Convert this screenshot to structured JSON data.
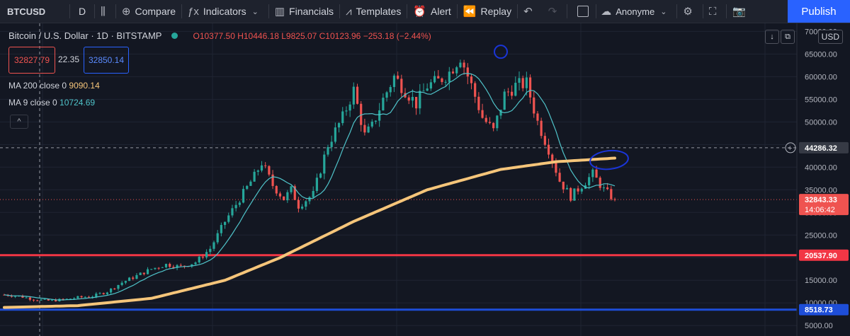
{
  "toolbar": {
    "symbol": "BTCUSD",
    "interval": "D",
    "compare": "Compare",
    "indicators": "Indicators",
    "financials": "Financials",
    "templates": "Templates",
    "alert": "Alert",
    "replay": "Replay",
    "layout_name": "Anonyme",
    "publish": "Publish"
  },
  "legend": {
    "title": "Bitcoin / U.S. Dollar · 1D · BITSTAMP",
    "ohlc": "O10377.50  H10446.18  L9825.07  C10123.96  −253.18 (−2.44%)",
    "sell_price": "32827.79",
    "spread": "22.35",
    "buy_price": "32850.14",
    "ma200_label": "MA 200 close 0",
    "ma200_value": "9090.14",
    "ma9_label": "MA 9 close 0",
    "ma9_value": "10724.69",
    "collapse": "^",
    "currency": "USD"
  },
  "colors": {
    "up": "#26a69a",
    "down": "#ef5350",
    "ma200": "#f5c57a",
    "ma9": "#4fc3c9",
    "red_level": "#f23645",
    "blue_level": "#1e4ed8",
    "annotation": "#1a35d8"
  },
  "chart_data": {
    "type": "candlestick",
    "y_axis_ticks": [
      70000,
      65000,
      60000,
      55000,
      50000,
      45000,
      40000,
      35000,
      30000,
      25000,
      20000,
      15000,
      10000,
      5000
    ],
    "y_axis_tick_labels": [
      "70000.00",
      "65000.00",
      "60000.00",
      "55000.00",
      "50000.00",
      "45000.00",
      "40000.00",
      "35000.00",
      "30000.00",
      "25000.00",
      "20000.00",
      "15000.00",
      "10000.00",
      "5000.00"
    ],
    "ylim": [
      3000,
      71000
    ],
    "crosshair_price": "44286.32",
    "last_price": "32843.33",
    "countdown": "14:06:42",
    "red_level": "20537.90",
    "blue_level": "8518.73",
    "price_path": [
      [
        0,
        11800
      ],
      [
        4,
        11500
      ],
      [
        8,
        10800
      ],
      [
        12,
        10500
      ],
      [
        16,
        10700
      ],
      [
        20,
        11200
      ],
      [
        24,
        11500
      ],
      [
        28,
        12500
      ],
      [
        32,
        14500
      ],
      [
        36,
        16000
      ],
      [
        40,
        17500
      ],
      [
        44,
        18500
      ],
      [
        48,
        18000
      ],
      [
        52,
        19000
      ],
      [
        56,
        22000
      ],
      [
        60,
        28000
      ],
      [
        64,
        33000
      ],
      [
        68,
        38000
      ],
      [
        70,
        41000
      ],
      [
        73,
        36000
      ],
      [
        76,
        33000
      ],
      [
        78,
        35000
      ],
      [
        80,
        31500
      ],
      [
        84,
        34000
      ],
      [
        88,
        45000
      ],
      [
        92,
        51000
      ],
      [
        95,
        57000
      ],
      [
        98,
        47000
      ],
      [
        100,
        49000
      ],
      [
        103,
        55000
      ],
      [
        106,
        60000
      ],
      [
        109,
        57000
      ],
      [
        112,
        54000
      ],
      [
        115,
        58000
      ],
      [
        118,
        59000
      ],
      [
        121,
        61000
      ],
      [
        124,
        64500
      ],
      [
        127,
        58000
      ],
      [
        130,
        51000
      ],
      [
        133,
        48000
      ],
      [
        136,
        56000
      ],
      [
        139,
        58000
      ],
      [
        142,
        58500
      ],
      [
        145,
        50000
      ],
      [
        148,
        44000
      ],
      [
        151,
        37000
      ],
      [
        154,
        33500
      ],
      [
        157,
        36000
      ],
      [
        160,
        38500
      ],
      [
        163,
        35000
      ],
      [
        166,
        32800
      ]
    ],
    "ma200_path": [
      [
        0,
        9000
      ],
      [
        20,
        9400
      ],
      [
        40,
        11000
      ],
      [
        60,
        15000
      ],
      [
        75,
        20000
      ],
      [
        95,
        28000
      ],
      [
        115,
        35000
      ],
      [
        135,
        39500
      ],
      [
        150,
        41200
      ],
      [
        166,
        42000
      ]
    ]
  }
}
